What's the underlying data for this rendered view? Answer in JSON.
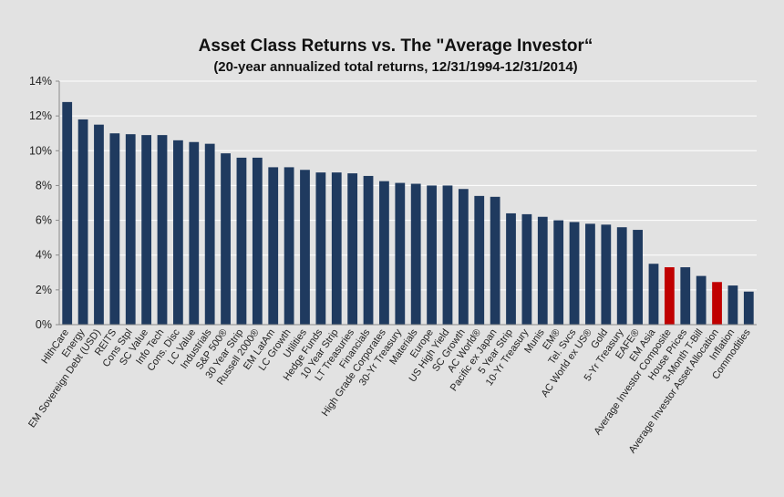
{
  "chart_data": {
    "type": "bar",
    "title": "Asset Class Returns vs. The \"Average Investor“",
    "subtitle": "(20-year annualized total returns, 12/31/1994-12/31/2014)",
    "ylim": [
      0,
      14
    ],
    "y_ticks": [
      "0%",
      "2%",
      "4%",
      "6%",
      "8%",
      "10%",
      "12%",
      "14%"
    ],
    "y_tick_values": [
      0,
      2,
      4,
      6,
      8,
      10,
      12,
      14
    ],
    "grid": true,
    "colors": {
      "default": "#1f3a5f",
      "highlight": "#c00000"
    },
    "highlight_indices": [
      38,
      41
    ],
    "categories": [
      "HlthCare",
      "Energy",
      "EM Sovereign Debt (USD)",
      "REITS",
      "Cons Stpl",
      "SC Value",
      "Info Tech",
      "Cons. Disc",
      "LC Value",
      "Industrials",
      "S&P 500®",
      "30 Year Strip",
      "Russell 2000®",
      "EM LatAm",
      "LC Growth",
      "Utilities",
      "Hedge Funds",
      "10 Year Strip",
      "LT Treasuries",
      "Financials",
      "High Grade Corporates",
      "30-Yr Treasury",
      "Materials",
      "Europe",
      "US High Yield",
      "SC Growth",
      "AC World®",
      "Pacific ex Japan",
      "5 Year Strip",
      "10-Yr Treasury",
      "Munis",
      "EM®",
      "Tel. Svcs",
      "AC World ex US®",
      "Gold",
      "5-Yr Treasury",
      "EAFE®",
      "EM Asia",
      "Average Investor Composite",
      "House Prices",
      "3-Month T-Bill",
      "Average Investor Asset Allocation",
      "Inflation",
      "Commodities"
    ],
    "values": [
      12.8,
      11.8,
      11.5,
      11.0,
      10.95,
      10.9,
      10.9,
      10.6,
      10.5,
      10.4,
      9.85,
      9.6,
      9.6,
      9.05,
      9.05,
      8.9,
      8.75,
      8.75,
      8.7,
      8.55,
      8.25,
      8.15,
      8.1,
      8.0,
      8.0,
      7.8,
      7.4,
      7.35,
      6.4,
      6.35,
      6.2,
      6.0,
      5.9,
      5.8,
      5.75,
      5.6,
      5.45,
      3.5,
      3.3,
      3.3,
      2.8,
      2.45,
      2.25,
      1.9
    ]
  }
}
